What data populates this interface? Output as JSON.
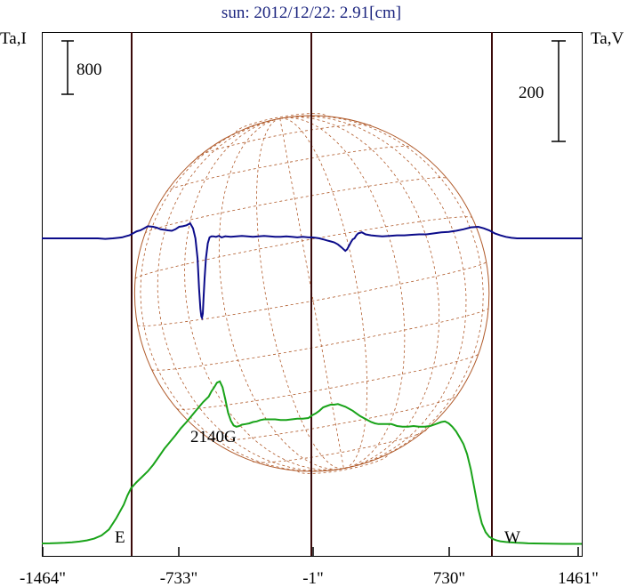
{
  "chart_data": {
    "type": "line",
    "title": "sun: 2012/12/22: 2.91[cm]",
    "left_axis_label": "Ta,I",
    "right_axis_label": "Ta,V",
    "left_scale_label": "800",
    "right_scale_label": "200",
    "annotation": "2140G",
    "limb_labels": {
      "east": "E",
      "west": "W"
    },
    "x_ticks": [
      {
        "value": -1464,
        "label": "-1464\""
      },
      {
        "value": -733,
        "label": "-733\""
      },
      {
        "value": -1,
        "label": "-1\""
      },
      {
        "value": 730,
        "label": "730\""
      },
      {
        "value": 1461,
        "label": "1461\""
      }
    ],
    "xlim": [
      -1464,
      1461
    ],
    "vertical_markers_arcsec": [
      -1464,
      -1000,
      -1,
      960,
      1461
    ],
    "solar_radius_arcsec": 960,
    "grid": "heliographic",
    "colors": {
      "title": "#1a237e",
      "intensity": "#19a319",
      "polarization": "#0b0b8a",
      "disk": "#b05a2a",
      "markers": "#3a0a0a"
    },
    "series": [
      {
        "name": "Ta,I",
        "x": [
          -1464,
          -1420,
          -1380,
          -1340,
          -1300,
          -1260,
          -1220,
          -1180,
          -1140,
          -1100,
          -1060,
          -1020,
          -1000,
          -980,
          -950,
          -920,
          -890,
          -860,
          -830,
          -800,
          -770,
          -740,
          -710,
          -680,
          -650,
          -620,
          -590,
          -560,
          -545,
          -530,
          -515,
          -500,
          -485,
          -470,
          -455,
          -440,
          -425,
          -410,
          -395,
          -380,
          -360,
          -340,
          -320,
          -300,
          -280,
          -260,
          -230,
          -200,
          -170,
          -140,
          -110,
          -80,
          -50,
          -20,
          0,
          20,
          40,
          60,
          80,
          100,
          120,
          140,
          160,
          180,
          200,
          220,
          240,
          260,
          280,
          300,
          320,
          340,
          360,
          380,
          400,
          430,
          460,
          490,
          520,
          550,
          580,
          610,
          640,
          670,
          700,
          720,
          740,
          760,
          780,
          800,
          820,
          840,
          860,
          880,
          900,
          920,
          940,
          960,
          980,
          1000,
          1020,
          1050,
          1080,
          1110,
          1140,
          1170,
          1200,
          1240,
          1280,
          1320,
          1360,
          1400,
          1461
        ],
        "values": [
          40,
          42,
          45,
          50,
          56,
          68,
          85,
          112,
          160,
          250,
          420,
          620,
          760,
          870,
          960,
          1040,
          1120,
          1220,
          1340,
          1460,
          1560,
          1660,
          1770,
          1860,
          1960,
          2060,
          2160,
          2240,
          2320,
          2380,
          2450,
          2470,
          2380,
          2200,
          2000,
          1880,
          1810,
          1790,
          1800,
          1820,
          1830,
          1840,
          1860,
          1870,
          1890,
          1900,
          1900,
          1900,
          1890,
          1890,
          1900,
          1910,
          1910,
          1920,
          1960,
          1990,
          2030,
          2080,
          2100,
          2120,
          2120,
          2130,
          2110,
          2090,
          2060,
          2030,
          1990,
          1950,
          1920,
          1890,
          1860,
          1840,
          1830,
          1830,
          1830,
          1830,
          1800,
          1790,
          1790,
          1800,
          1790,
          1790,
          1800,
          1830,
          1860,
          1870,
          1840,
          1790,
          1720,
          1630,
          1530,
          1380,
          1150,
          860,
          560,
          340,
          210,
          140,
          105,
          85,
          72,
          62,
          55,
          50,
          46,
          42,
          40,
          38,
          36,
          35,
          34,
          33,
          33
        ]
      },
      {
        "name": "Ta,V",
        "x": [
          -1464,
          -1400,
          -1340,
          -1280,
          -1220,
          -1160,
          -1120,
          -1080,
          -1050,
          -1030,
          -1010,
          -990,
          -970,
          -950,
          -930,
          -910,
          -890,
          -860,
          -840,
          -820,
          -800,
          -780,
          -760,
          -740,
          -720,
          -700,
          -680,
          -660,
          -645,
          -632,
          -620,
          -612,
          -605,
          -600,
          -596,
          -592,
          -588,
          -582,
          -575,
          -565,
          -555,
          -545,
          -535,
          -520,
          -505,
          -490,
          -470,
          -440,
          -410,
          -380,
          -350,
          -320,
          -290,
          -260,
          -230,
          -200,
          -170,
          -140,
          -110,
          -80,
          -50,
          -20,
          0,
          20,
          40,
          60,
          80,
          100,
          120,
          140,
          160,
          180,
          190,
          200,
          210,
          220,
          230,
          240,
          250,
          270,
          290,
          320,
          350,
          380,
          420,
          460,
          500,
          540,
          580,
          620,
          660,
          700,
          740,
          780,
          820,
          860,
          900,
          930,
          960,
          990,
          1020,
          1050,
          1080,
          1110,
          1140,
          1180,
          1220,
          1260,
          1300,
          1340,
          1380,
          1420,
          1461
        ],
        "values": [
          0,
          0,
          0,
          0,
          0,
          0,
          -1,
          0,
          1,
          2,
          4,
          6,
          10,
          14,
          16,
          20,
          24,
          23,
          21,
          18,
          17,
          16,
          15,
          18,
          23,
          24,
          26,
          30,
          20,
          0,
          -40,
          -100,
          -140,
          -155,
          -158,
          -150,
          -120,
          -80,
          -40,
          -10,
          2,
          4,
          4,
          3,
          5,
          2,
          4,
          3,
          4,
          5,
          4,
          3,
          4,
          5,
          4,
          3,
          3,
          4,
          3,
          2,
          3,
          2,
          2,
          1,
          0,
          -2,
          -4,
          -6,
          -8,
          -12,
          -18,
          -25,
          -22,
          -15,
          -8,
          -2,
          0,
          6,
          10,
          12,
          8,
          6,
          5,
          4,
          5,
          6,
          6,
          7,
          8,
          8,
          10,
          12,
          13,
          15,
          18,
          22,
          23,
          20,
          16,
          10,
          6,
          3,
          1,
          0,
          0,
          0,
          0,
          0,
          0,
          0,
          0,
          0,
          0
        ]
      }
    ]
  }
}
